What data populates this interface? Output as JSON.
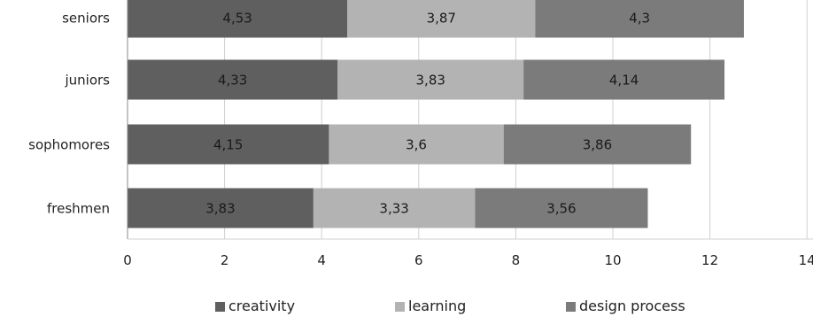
{
  "colors": {
    "creativity": "#5f5f5f",
    "learning": "#b3b3b3",
    "design_process": "#7b7b7b",
    "grid": "#d0d0d0",
    "axis": "#8a8a8a"
  },
  "chart_data": {
    "type": "bar",
    "orientation": "horizontal",
    "stacked": true,
    "categories": [
      "seniors",
      "juniors",
      "sophomores",
      "freshmen"
    ],
    "series": [
      {
        "name": "creativity",
        "values": [
          4.53,
          4.33,
          4.15,
          3.83
        ],
        "labels": [
          "4,53",
          "4,33",
          "4,15",
          "3,83"
        ]
      },
      {
        "name": "learning",
        "values": [
          3.87,
          3.83,
          3.6,
          3.33
        ],
        "labels": [
          "3,87",
          "3,83",
          "3,6",
          "3,33"
        ]
      },
      {
        "name": "design process",
        "values": [
          4.3,
          4.14,
          3.86,
          3.56
        ],
        "labels": [
          "4,3",
          "4,14",
          "3,86",
          "3,56"
        ]
      }
    ],
    "xlim": [
      0,
      14
    ],
    "xticks": [
      "0",
      "2",
      "4",
      "6",
      "8",
      "10",
      "12",
      "14"
    ],
    "grid": "vertical",
    "legend_position": "bottom"
  }
}
